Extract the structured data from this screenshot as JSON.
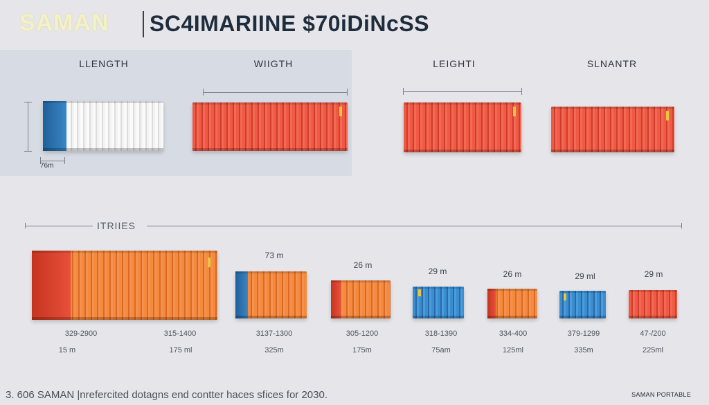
{
  "header": {
    "brand": "SAMAN",
    "title": "SC4IMARIINE $70iDiNcSS"
  },
  "top_columns": [
    {
      "label": "LLENGTH"
    },
    {
      "label": "WIIGTH"
    },
    {
      "label": "LEIGHTI"
    },
    {
      "label": "SLNANTR"
    }
  ],
  "top_dimension": "76m",
  "series": {
    "label": "ITRIIES",
    "items": [
      {
        "size_label": "",
        "spec": "329-2900",
        "length": "15 m",
        "color": "#f58a3c"
      },
      {
        "size_label": "",
        "spec": "315-1400",
        "length": "175 ml",
        "color": "#f58a3c"
      },
      {
        "size_label": "73 m",
        "spec": "3137-1300",
        "length": "325m",
        "color": "#f58a3c"
      },
      {
        "size_label": "26 m",
        "spec": "305-1200",
        "length": "175m",
        "color": "#f58a3c"
      },
      {
        "size_label": "29 m",
        "spec": "318-1390",
        "length": "75am",
        "color": "#3a8ed0"
      },
      {
        "size_label": "26 m",
        "spec": "334-400",
        "length": "125ml",
        "color": "#f58a3c"
      },
      {
        "size_label": "29 ml",
        "spec": "379-1299",
        "length": "335m",
        "color": "#3a8ed0"
      },
      {
        "size_label": "29 m",
        "spec": "47-/200",
        "length": "225ml",
        "color": "#f05a44"
      }
    ]
  },
  "footer": {
    "caption": "3. 606 SAMAN |nrefercited dotagns end contter haces sfices for 2030.",
    "badge": "SAMAN PORTABLE"
  }
}
